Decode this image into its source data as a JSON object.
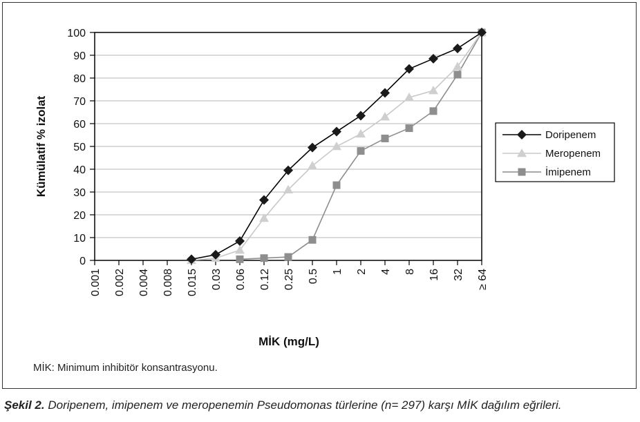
{
  "chart_data": {
    "type": "line",
    "xlabel": "MİK (mg/L)",
    "ylabel": "Kümülatif % izolat",
    "ylim": [
      0,
      100
    ],
    "yticks": [
      0,
      10,
      20,
      30,
      40,
      50,
      60,
      70,
      80,
      90,
      100
    ],
    "categories": [
      "0.001",
      "0.002",
      "0.004",
      "0.008",
      "0.015",
      "0.03",
      "0.06",
      "0.12",
      "0.25",
      "0.5",
      "1",
      "2",
      "4",
      "8",
      "16",
      "32",
      "≥ 64"
    ],
    "grid": true,
    "legend_position": "right",
    "series": [
      {
        "name": "Doripenem",
        "marker": "diamond",
        "line_color": "#000000",
        "marker_color": "#1a1a1a",
        "values": [
          null,
          null,
          null,
          null,
          0.5,
          2.5,
          8.5,
          26.5,
          39.5,
          49.5,
          56.5,
          63.5,
          73.5,
          84,
          88.5,
          93,
          100
        ]
      },
      {
        "name": "Meropenem",
        "marker": "triangle",
        "line_color": "#c8c8c8",
        "marker_color": "#cfcfcf",
        "values": [
          null,
          null,
          null,
          null,
          0,
          1,
          4.5,
          18.5,
          31,
          41.5,
          50,
          55.5,
          63,
          71.5,
          74.5,
          85,
          100
        ]
      },
      {
        "name": "İmipenem",
        "marker": "square",
        "line_color": "#8c8c8c",
        "marker_color": "#8e8e8e",
        "values": [
          null,
          null,
          null,
          null,
          null,
          null,
          0.5,
          1,
          1.5,
          9,
          33,
          48,
          53.5,
          58,
          65.5,
          81.5,
          100
        ]
      }
    ]
  },
  "footnote": "MİK: Minimum inhibitör konsantrasyonu.",
  "caption": {
    "lead": "Şekil 2.",
    "text": " Doripenem, imipenem ve meropenemin Pseudomonas türlerine (n= 297) karşı MİK dağılım eğrileri."
  }
}
